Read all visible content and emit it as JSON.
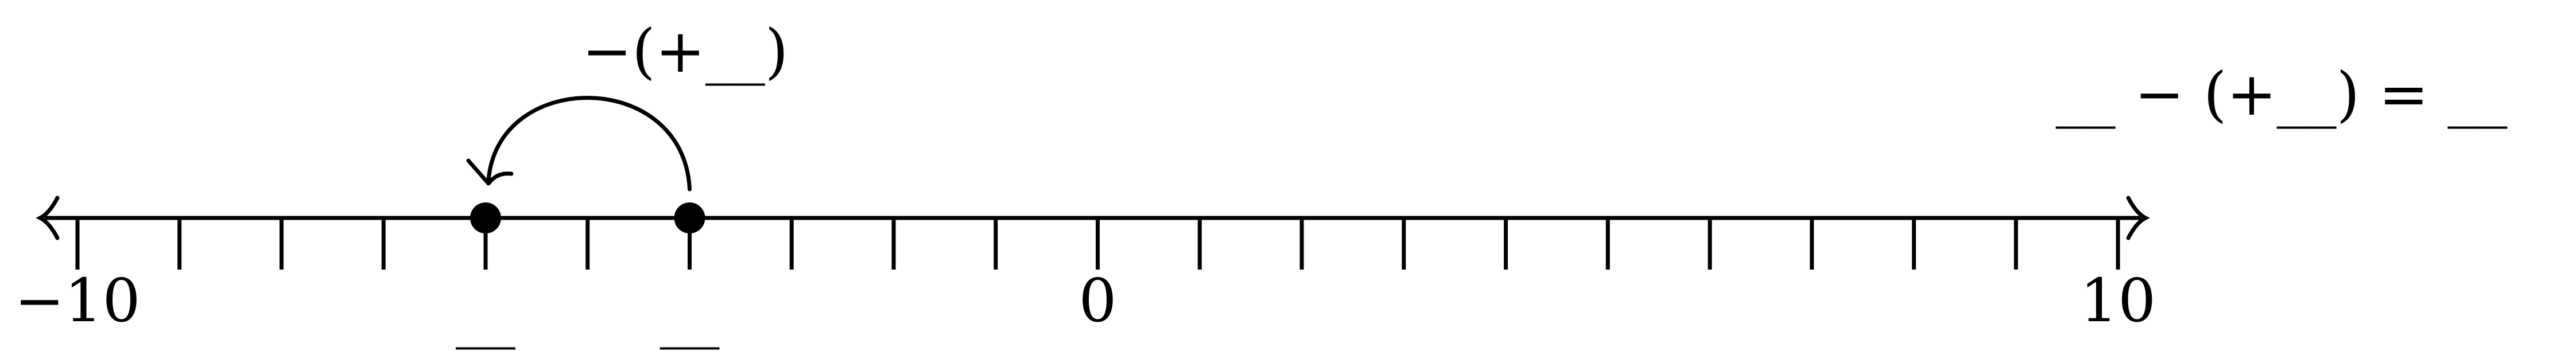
{
  "number_line": {
    "min": -10,
    "max": 10,
    "tick_step": 1,
    "labels": [
      {
        "value": -10,
        "text": "−10"
      },
      {
        "value": 0,
        "text": "0"
      },
      {
        "value": 10,
        "text": "10"
      }
    ]
  },
  "points": [
    {
      "value": -6,
      "label": "__"
    },
    {
      "value": -4,
      "label": "__"
    }
  ],
  "jump": {
    "from": -4,
    "to": -6,
    "label": "−(+__)"
  },
  "equation": "__ − (+__) = __"
}
